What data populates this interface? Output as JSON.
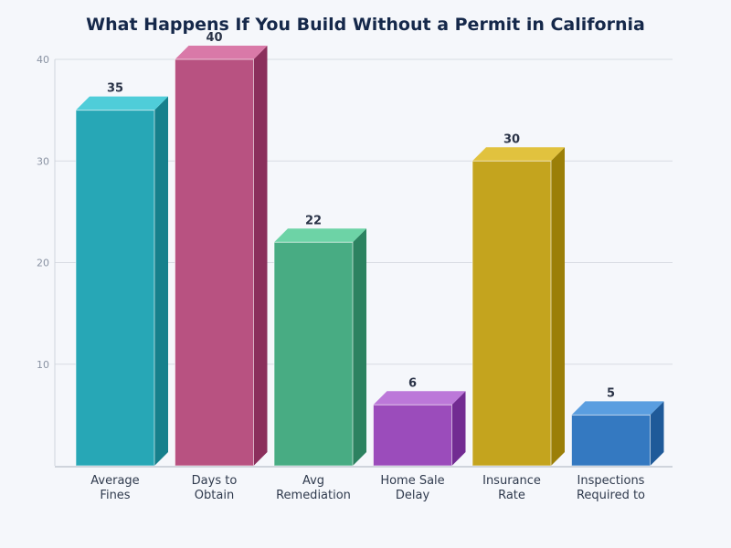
{
  "chart_data": {
    "type": "bar",
    "title": "What Happens If You Build Without a Permit in California",
    "categories": [
      [
        "Average",
        "Fines"
      ],
      [
        "Days to",
        "Obtain"
      ],
      [
        "Avg",
        "Remediation"
      ],
      [
        "Home Sale",
        "Delay"
      ],
      [
        "Insurance",
        "Rate"
      ],
      [
        "Inspections",
        "Required to"
      ]
    ],
    "values": [
      35,
      40,
      22,
      6,
      30,
      5
    ],
    "ylim": [
      0,
      40
    ],
    "yticks": [
      10,
      20,
      30,
      40
    ],
    "grid": true,
    "colors": [
      {
        "front": "#27a7b6",
        "top": "#4fcdd9",
        "side": "#16808c"
      },
      {
        "front": "#b85281",
        "top": "#d979a8",
        "side": "#8b2f5c"
      },
      {
        "front": "#48ac83",
        "top": "#6dd3a6",
        "side": "#2c8260"
      },
      {
        "front": "#9b4cbb",
        "top": "#bc78d9",
        "side": "#722b92"
      },
      {
        "front": "#c4a41e",
        "top": "#e1c23e",
        "side": "#9b7f08"
      },
      {
        "front": "#3479c1",
        "top": "#5a9ee0",
        "side": "#1f5a99"
      }
    ]
  }
}
